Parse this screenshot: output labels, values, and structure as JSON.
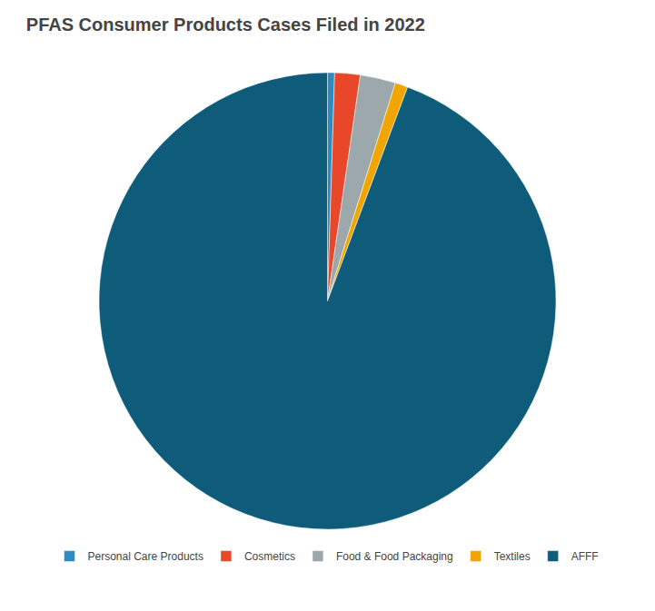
{
  "chart_data": {
    "type": "pie",
    "title": "PFAS Consumer Products Cases Filed in 2022",
    "categories": [
      "Personal Care Products",
      "Cosmetics",
      "Food & Food Packaging",
      "Textiles",
      "AFFF"
    ],
    "values": [
      0.5,
      1.8,
      2.5,
      0.9,
      94.3
    ],
    "colors": [
      "#2E8BC0",
      "#E8472A",
      "#9DA8AD",
      "#F0A500",
      "#0E5C7A"
    ],
    "legend": "bottom",
    "data_labels": false
  }
}
